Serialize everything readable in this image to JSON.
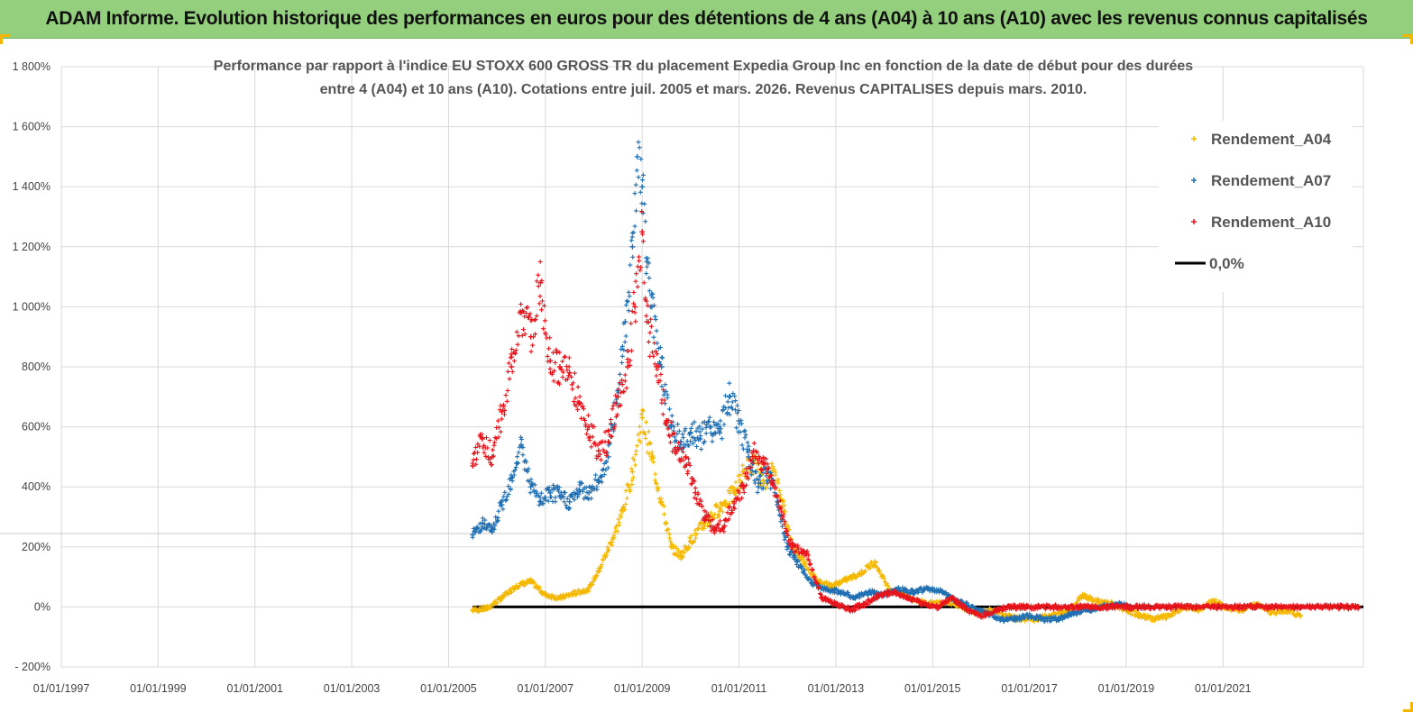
{
  "header": {
    "title": "ADAM Informe. Evolution historique des performances en euros pour des détentions de 4 ans (A04) à 10 ans (A10) avec les revenus connus capitalisés"
  },
  "colors": {
    "header_bg": "#93cf7c",
    "a04": "#f5b800",
    "a07": "#1f6fb2",
    "a10": "#e8141c",
    "zero": "#000000",
    "grid": "#d9d9d9"
  },
  "chart_data": {
    "type": "scatter",
    "title_lines": [
      "Performance par rapport à l'indice EU STOXX 600 GROSS TR  du placement Expedia Group Inc en fonction de la date de début pour des durées",
      "entre 4 (A04) et 10 ans (A10). Cotations entre juil. 2005 et mars. 2026. Revenus CAPITALISES depuis mars. 2010."
    ],
    "xlabel": "",
    "ylabel": "",
    "x_range": [
      1997.0,
      2023.9
    ],
    "ylim": [
      -200,
      1800
    ],
    "y_ticks": [
      {
        "value": 1800,
        "label": "1 800%"
      },
      {
        "value": 1600,
        "label": "1 600%"
      },
      {
        "value": 1400,
        "label": "1 400%"
      },
      {
        "value": 1200,
        "label": "1 200%"
      },
      {
        "value": 1000,
        "label": "1 000%"
      },
      {
        "value": 800,
        "label": "800%"
      },
      {
        "value": 600,
        "label": "600%"
      },
      {
        "value": 400,
        "label": "400%"
      },
      {
        "value": 200,
        "label": "200%"
      },
      {
        "value": 0,
        "label": "0%"
      },
      {
        "value": -200,
        "label": "- 200%"
      }
    ],
    "x_ticks": [
      {
        "value": 1997.0,
        "label": "01/01/1997"
      },
      {
        "value": 1999.0,
        "label": "01/01/1999"
      },
      {
        "value": 2001.0,
        "label": "01/01/2001"
      },
      {
        "value": 2003.0,
        "label": "01/01/2003"
      },
      {
        "value": 2005.0,
        "label": "01/01/2005"
      },
      {
        "value": 2007.0,
        "label": "01/01/2007"
      },
      {
        "value": 2009.0,
        "label": "01/01/2009"
      },
      {
        "value": 2011.0,
        "label": "01/01/2011"
      },
      {
        "value": 2013.0,
        "label": "01/01/2013"
      },
      {
        "value": 2015.0,
        "label": "01/01/2015"
      },
      {
        "value": 2017.0,
        "label": "01/01/2017"
      },
      {
        "value": 2019.0,
        "label": "01/01/2019"
      },
      {
        "value": 2021.0,
        "label": "01/01/2021"
      }
    ],
    "legend_position": "top-right",
    "series": [
      {
        "name": "Rendement_A04",
        "marker": "+",
        "color": "#f5b800",
        "x": [
          2005.5,
          2005.8,
          2006.1,
          2006.4,
          2006.7,
          2007.0,
          2007.3,
          2007.6,
          2007.9,
          2008.1,
          2008.4,
          2008.6,
          2008.8,
          2009.0,
          2009.2,
          2009.4,
          2009.6,
          2009.8,
          2010.0,
          2010.3,
          2010.6,
          2010.9,
          2011.1,
          2011.3,
          2011.5,
          2011.7,
          2011.9,
          2012.1,
          2012.3,
          2012.6,
          2012.9,
          2013.2,
          2013.5,
          2013.8,
          2014.1,
          2014.4,
          2014.7,
          2015.0,
          2015.3,
          2015.6,
          2015.9,
          2016.2,
          2016.5,
          2016.8,
          2017.1,
          2017.4,
          2017.7,
          2017.9,
          2018.1,
          2018.4,
          2018.7,
          2019.0,
          2019.3,
          2019.6,
          2019.9,
          2020.2,
          2020.5,
          2020.8,
          2021.1,
          2021.4,
          2021.7,
          2022.0,
          2022.3,
          2022.6
        ],
        "y": [
          -10,
          -5,
          30,
          70,
          85,
          40,
          30,
          45,
          60,
          120,
          230,
          320,
          450,
          630,
          500,
          350,
          200,
          170,
          220,
          280,
          330,
          380,
          450,
          480,
          420,
          450,
          350,
          200,
          160,
          90,
          70,
          90,
          110,
          150,
          60,
          40,
          20,
          10,
          20,
          0,
          -20,
          -10,
          -30,
          -40,
          -40,
          -30,
          -20,
          0,
          40,
          20,
          10,
          -10,
          -30,
          -40,
          -30,
          0,
          -10,
          20,
          -5,
          -10,
          10,
          -20,
          -10,
          -30
        ]
      },
      {
        "name": "Rendement_A07",
        "marker": "+",
        "color": "#1f6fb2",
        "x": [
          2005.5,
          2005.7,
          2005.9,
          2006.1,
          2006.3,
          2006.5,
          2006.7,
          2006.9,
          2007.1,
          2007.3,
          2007.5,
          2007.7,
          2007.9,
          2008.1,
          2008.3,
          2008.5,
          2008.65,
          2008.8,
          2008.9,
          2009.0,
          2009.1,
          2009.2,
          2009.4,
          2009.6,
          2009.8,
          2010.0,
          2010.2,
          2010.4,
          2010.6,
          2010.8,
          2011.0,
          2011.2,
          2011.4,
          2011.6,
          2011.8,
          2012.0,
          2012.2,
          2012.5,
          2012.8,
          2013.1,
          2013.4,
          2013.7,
          2014.0,
          2014.3,
          2014.6,
          2014.9,
          2015.2,
          2015.5,
          2015.8,
          2016.1,
          2016.4,
          2016.7,
          2017.0,
          2017.3,
          2017.6,
          2017.9,
          2018.2,
          2018.5,
          2018.8,
          2019.1
        ],
        "y": [
          240,
          280,
          250,
          340,
          430,
          540,
          400,
          350,
          380,
          370,
          350,
          390,
          380,
          420,
          500,
          720,
          950,
          1200,
          1500,
          1400,
          1150,
          1000,
          800,
          600,
          550,
          580,
          560,
          600,
          580,
          700,
          620,
          500,
          400,
          450,
          350,
          200,
          150,
          80,
          60,
          50,
          30,
          50,
          40,
          60,
          50,
          60,
          50,
          20,
          0,
          -20,
          -40,
          -40,
          -30,
          -40,
          -40,
          -20,
          -10,
          0,
          10,
          0
        ]
      },
      {
        "name": "Rendement_A10",
        "marker": "+",
        "color": "#e8141c",
        "x": [
          2005.5,
          2005.7,
          2005.9,
          2006.1,
          2006.3,
          2006.5,
          2006.7,
          2006.9,
          2007.1,
          2007.3,
          2007.5,
          2007.7,
          2007.9,
          2008.1,
          2008.3,
          2008.5,
          2008.7,
          2008.85,
          2009.0,
          2009.1,
          2009.3,
          2009.5,
          2009.7,
          2009.9,
          2010.1,
          2010.3,
          2010.5,
          2010.7,
          2010.9,
          2011.1,
          2011.3,
          2011.5,
          2011.7,
          2011.9,
          2012.1,
          2012.4,
          2012.7,
          2013.0,
          2013.3,
          2013.6,
          2013.9,
          2014.2,
          2014.5,
          2014.8,
          2015.1,
          2015.4,
          2015.7,
          2016.0,
          2016.3,
          2016.6,
          2016.9,
          2017.2,
          2017.5,
          2017.8,
          2018.1,
          2018.4,
          2018.7,
          2019.0,
          2019.3,
          2019.6,
          2019.9,
          2020.2,
          2020.5,
          2020.8,
          2021.1,
          2021.4,
          2021.7,
          2022.0,
          2022.3,
          2022.6,
          2022.9,
          2023.2,
          2023.5,
          2023.8
        ],
        "y": [
          470,
          560,
          500,
          650,
          800,
          980,
          900,
          1080,
          820,
          800,
          780,
          680,
          600,
          520,
          550,
          700,
          800,
          1000,
          1250,
          950,
          800,
          620,
          520,
          500,
          380,
          300,
          260,
          270,
          350,
          400,
          520,
          480,
          420,
          300,
          200,
          180,
          30,
          10,
          -10,
          10,
          40,
          50,
          30,
          10,
          0,
          30,
          -10,
          -30,
          -10,
          0,
          0,
          0,
          0,
          0,
          0,
          0,
          0,
          0,
          0,
          0,
          0,
          0,
          0,
          0,
          0,
          0,
          0,
          0,
          0,
          0,
          0,
          0,
          0,
          0
        ]
      },
      {
        "name": "0,0%",
        "marker": "line",
        "color": "#000000",
        "x": [
          2005.5,
          2023.9
        ],
        "y": [
          0,
          0
        ]
      }
    ]
  }
}
